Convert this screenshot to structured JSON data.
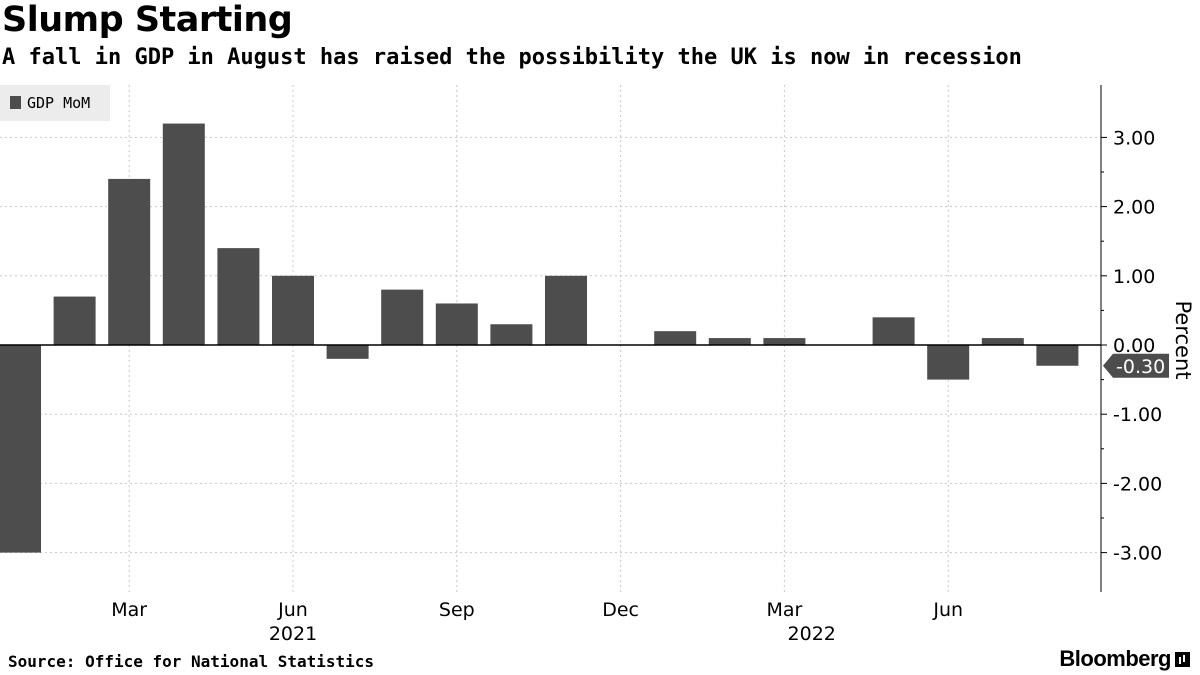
{
  "title": "Slump Starting",
  "subtitle": "A fall in GDP in August has raised the possibility the UK is now in recession",
  "source": "Source: Office for National Statistics",
  "brand": "Bloomberg",
  "chart_data": {
    "type": "bar",
    "series": [
      {
        "name": "GDP MoM",
        "color": "#4d4d4d",
        "categories": [
          "Jan 2021",
          "Feb 2021",
          "Mar 2021",
          "Apr 2021",
          "May 2021",
          "Jun 2021",
          "Jul 2021",
          "Aug 2021",
          "Sep 2021",
          "Oct 2021",
          "Nov 2021",
          "Dec 2021",
          "Jan 2022",
          "Feb 2022",
          "Mar 2022",
          "Apr 2022",
          "May 2022",
          "Jun 2022",
          "Jul 2022",
          "Aug 2022"
        ],
        "values": [
          -3.0,
          0.7,
          2.4,
          3.2,
          1.4,
          1.0,
          -0.2,
          0.8,
          0.6,
          0.3,
          1.0,
          0.0,
          0.2,
          0.1,
          0.1,
          0.0,
          0.4,
          -0.5,
          0.1,
          -0.3
        ]
      }
    ],
    "ylabel": "Percent",
    "ylim": [
      -3.5,
      3.8
    ],
    "yticks": [
      3.0,
      2.0,
      1.0,
      0.0,
      -1.0,
      -2.0,
      -3.0
    ],
    "ytick_labels": [
      "3.00",
      "2.00",
      "1.00",
      "0.00",
      "-1.00",
      "-2.00",
      "-3.00"
    ],
    "xtick_labels": [
      {
        "label": "Mar",
        "index": 2
      },
      {
        "label": "Jun",
        "index": 5
      },
      {
        "label": "Sep",
        "index": 8
      },
      {
        "label": "Dec",
        "index": 11
      },
      {
        "label": "Mar",
        "index": 14
      },
      {
        "label": "Jun",
        "index": 17
      }
    ],
    "year_labels": [
      {
        "label": "2021",
        "index": 5
      },
      {
        "label": "2022",
        "index": 14.5
      }
    ],
    "last_value_label": "-0.30",
    "legend_position": "top-left",
    "grid": true
  }
}
